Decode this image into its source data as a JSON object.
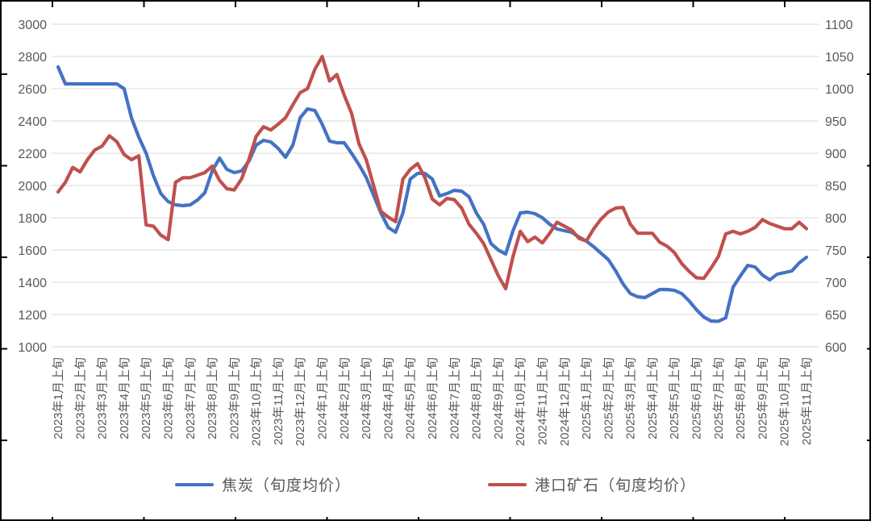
{
  "frame": {
    "background": "#ffffff",
    "border_color": "#000000"
  },
  "chart_data": {
    "type": "line",
    "title": "",
    "x_label_start": "2023年1月上旬",
    "x_label_end": "2025年11月上旬",
    "points_per_month": 3,
    "x_frequency": "旬度（每月上旬/中旬/下旬）",
    "month_tick_labels": [
      "2023年1月上旬",
      "2023年2月上旬",
      "2023年3月上旬",
      "2023年4月上旬",
      "2023年5月上旬",
      "2023年6月上旬",
      "2023年7月上旬",
      "2023年8月上旬",
      "2023年9月上旬",
      "2023年10月上旬",
      "2023年11月上旬",
      "2023年12月上旬",
      "2024年1月上旬",
      "2024年2月上旬",
      "2024年3月上旬",
      "2024年4月上旬",
      "2024年5月上旬",
      "2024年6月上旬",
      "2024年7月上旬",
      "2024年8月上旬",
      "2024年9月上旬",
      "2024年10月上旬",
      "2024年11月上旬",
      "2024年12月上旬",
      "2025年1月上旬",
      "2025年2月上旬",
      "2025年3月上旬",
      "2025年4月上旬",
      "2025年5月上旬",
      "2025年6月上旬",
      "2025年7月上旬",
      "2025年8月上旬",
      "2025年9月上旬",
      "2025年10月上旬",
      "2025年11月上旬"
    ],
    "left_axis": {
      "min": 1000,
      "max": 3000,
      "step": 200,
      "tick_labels": [
        "3000",
        "2800",
        "2600",
        "2400",
        "2200",
        "2000",
        "1800",
        "1600",
        "1400",
        "1200",
        "1000"
      ]
    },
    "right_axis": {
      "min": 600,
      "max": 1100,
      "step": 50,
      "tick_labels": [
        "1100",
        "1050",
        "1000",
        "950",
        "900",
        "850",
        "800",
        "750",
        "700",
        "650",
        "600"
      ]
    },
    "grid": true,
    "grid_color": "#D9D9D9",
    "axis_text_color": "#595959",
    "legend_position": "bottom",
    "series": [
      {
        "name": "焦炭（旬度均价）",
        "color": "#4472C4",
        "axis": "left",
        "values": [
          2735,
          2630,
          2630,
          2630,
          2630,
          2630,
          2630,
          2630,
          2630,
          2600,
          2420,
          2300,
          2200,
          2060,
          1950,
          1900,
          1880,
          1875,
          1880,
          1910,
          1955,
          2090,
          2170,
          2100,
          2080,
          2090,
          2150,
          2250,
          2280,
          2270,
          2230,
          2175,
          2250,
          2420,
          2475,
          2465,
          2380,
          2275,
          2265,
          2265,
          2200,
          2130,
          2050,
          1940,
          1830,
          1740,
          1710,
          1830,
          2040,
          2075,
          2075,
          2040,
          1935,
          1950,
          1970,
          1965,
          1930,
          1830,
          1760,
          1640,
          1600,
          1575,
          1720,
          1830,
          1835,
          1825,
          1800,
          1760,
          1730,
          1720,
          1710,
          1680,
          1655,
          1620,
          1580,
          1540,
          1470,
          1390,
          1330,
          1310,
          1305,
          1330,
          1355,
          1355,
          1350,
          1330,
          1285,
          1230,
          1185,
          1160,
          1158,
          1180,
          1370,
          1440,
          1505,
          1495,
          1445,
          1415,
          1450,
          1460,
          1470,
          1520,
          1555
        ]
      },
      {
        "name": "港口矿石（旬度均价）",
        "color": "#C0504D",
        "axis": "right",
        "values": [
          840,
          855,
          878,
          871,
          890,
          905,
          911,
          927,
          918,
          898,
          890,
          896,
          789,
          787,
          773,
          766,
          855,
          862,
          862,
          866,
          870,
          880,
          858,
          845,
          843,
          860,
          890,
          926,
          941,
          936,
          945,
          955,
          975,
          994,
          1000,
          1030,
          1050,
          1012,
          1022,
          990,
          962,
          915,
          890,
          850,
          810,
          801,
          794,
          860,
          875,
          884,
          862,
          829,
          820,
          830,
          828,
          815,
          790,
          776,
          760,
          735,
          710,
          690,
          740,
          779,
          763,
          770,
          761,
          776,
          793,
          787,
          781,
          768,
          764,
          783,
          798,
          809,
          815,
          816,
          790,
          776,
          776,
          776,
          762,
          756,
          746,
          729,
          717,
          707,
          706,
          722,
          740,
          775,
          779,
          775,
          779,
          785,
          797,
          791,
          787,
          783,
          783,
          793,
          783
        ]
      }
    ]
  }
}
